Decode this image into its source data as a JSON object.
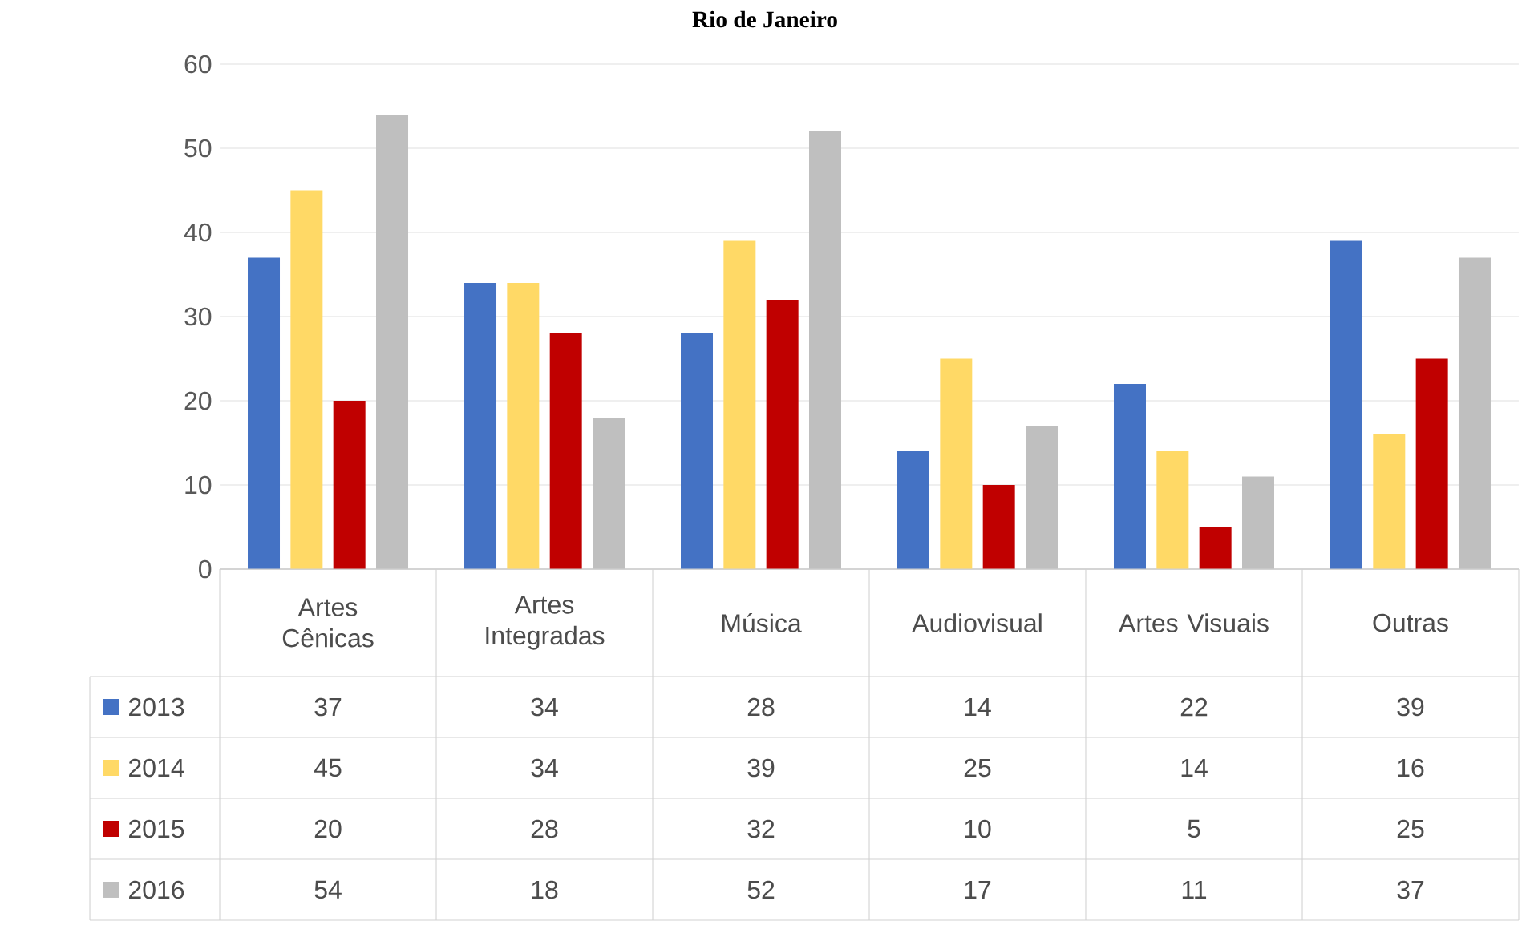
{
  "chart_data": {
    "type": "bar",
    "title": "Rio de Janeiro",
    "categories": [
      "Artes Cênicas",
      "Artes Integradas",
      "Música",
      "Audiovisual",
      "Artes Visuais",
      "Outras"
    ],
    "series": [
      {
        "name": "2013",
        "color": "#4472c4",
        "values": [
          37,
          34,
          28,
          14,
          22,
          39
        ]
      },
      {
        "name": "2014",
        "color": "#ffd966",
        "values": [
          45,
          34,
          39,
          25,
          14,
          16
        ]
      },
      {
        "name": "2015",
        "color": "#c00000",
        "values": [
          20,
          28,
          32,
          10,
          5,
          25
        ]
      },
      {
        "name": "2016",
        "color": "#bfbfbf",
        "values": [
          54,
          18,
          52,
          17,
          11,
          37
        ]
      }
    ],
    "ylim": [
      0,
      60
    ],
    "yticks": [
      0,
      10,
      20,
      30,
      40,
      50,
      60
    ],
    "grid": "y",
    "legend": "bottom",
    "data_labels": true
  }
}
